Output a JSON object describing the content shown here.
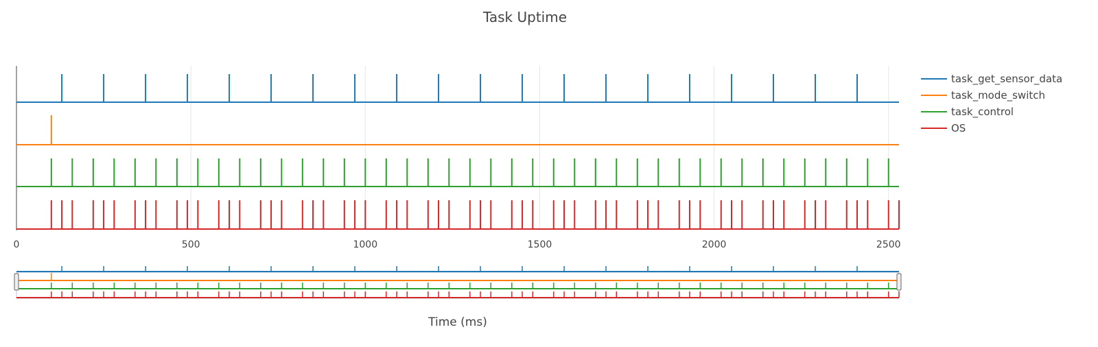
{
  "chart_data": {
    "type": "line",
    "title": "Task Uptime",
    "xlabel": "Time (ms)",
    "ylabel": "",
    "xlim": [
      0,
      2530
    ],
    "x_ticks": [
      0,
      500,
      1000,
      1500,
      2000,
      2500
    ],
    "x_grid": true,
    "y_grid": false,
    "legend_position": "top-right",
    "range_slider": true,
    "series": [
      {
        "name": "task_get_sensor_data",
        "color": "#1f77b4",
        "spike_times": [
          130,
          250,
          370,
          490,
          610,
          730,
          850,
          970,
          1090,
          1210,
          1330,
          1450,
          1570,
          1690,
          1810,
          1930,
          2050,
          2170,
          2290,
          2410
        ]
      },
      {
        "name": "task_mode_switch",
        "color": "#ff7f0e",
        "spike_times": [
          100
        ]
      },
      {
        "name": "task_control",
        "color": "#2ca02c",
        "spike_times": [
          100,
          160,
          220,
          280,
          340,
          400,
          460,
          520,
          580,
          640,
          700,
          760,
          820,
          880,
          940,
          1000,
          1060,
          1120,
          1180,
          1240,
          1300,
          1360,
          1420,
          1480,
          1540,
          1600,
          1660,
          1720,
          1780,
          1840,
          1900,
          1960,
          2020,
          2080,
          2140,
          2200,
          2260,
          2320,
          2380,
          2440,
          2500
        ]
      },
      {
        "name": "OS",
        "color": "#d62728",
        "spike_times": [
          100,
          130,
          160,
          220,
          250,
          280,
          340,
          370,
          400,
          460,
          490,
          520,
          580,
          610,
          640,
          700,
          730,
          760,
          820,
          850,
          880,
          940,
          970,
          1000,
          1060,
          1090,
          1120,
          1180,
          1210,
          1240,
          1300,
          1330,
          1360,
          1420,
          1450,
          1480,
          1540,
          1570,
          1600,
          1660,
          1690,
          1720,
          1780,
          1810,
          1840,
          1900,
          1930,
          1960,
          2020,
          2050,
          2080,
          2140,
          2170,
          2200,
          2260,
          2290,
          2320,
          2380,
          2410,
          2440,
          2500,
          2530
        ]
      }
    ]
  }
}
